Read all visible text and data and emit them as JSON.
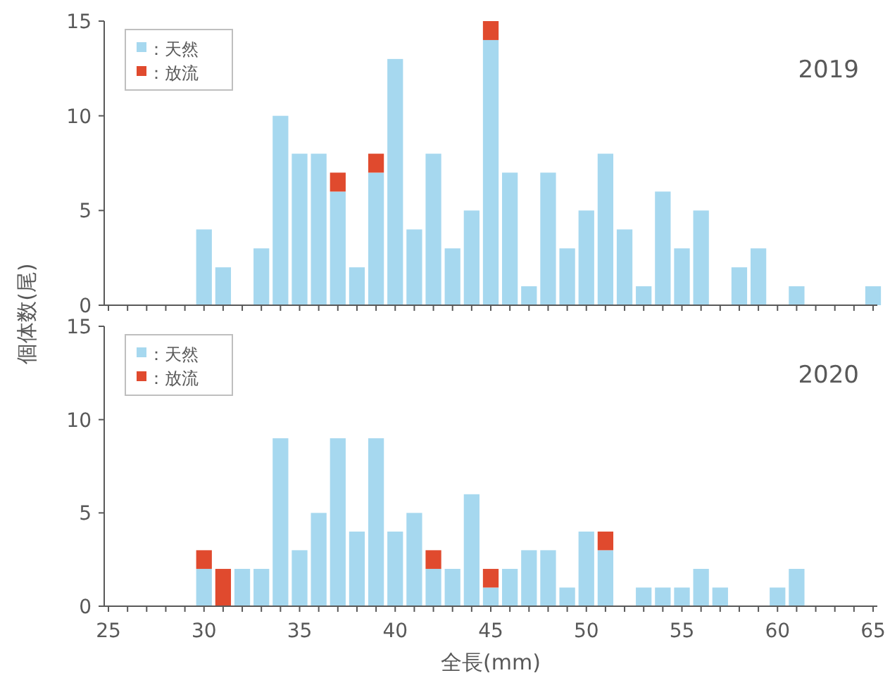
{
  "chart_data": [
    {
      "type": "bar",
      "stacked": true,
      "ylabel": "個体数(尾)",
      "annotations": [
        "2019"
      ],
      "legend": "top left",
      "tick_labels": "y",
      "ylim": [
        0,
        15
      ],
      "yticks": [
        0,
        5,
        10,
        15
      ],
      "categories": [
        "25",
        null,
        null,
        null,
        null,
        "30",
        null,
        null,
        null,
        null,
        "35",
        null,
        null,
        null,
        null,
        "40",
        null,
        null,
        null,
        null,
        "45",
        null,
        null,
        null,
        null,
        "50",
        null,
        null,
        null,
        null,
        "55",
        null,
        null,
        null,
        null,
        "60",
        null,
        null,
        null,
        null,
        "65"
      ],
      "series": [
        {
          "name": "：天然",
          "color": "#a6d8ef",
          "values": [
            0,
            0,
            0,
            0,
            0,
            4,
            2,
            0,
            3,
            10,
            8,
            8,
            6,
            2,
            7,
            13,
            4,
            8,
            3,
            5,
            14,
            7,
            1,
            7,
            3,
            5,
            8,
            4,
            1,
            6,
            3,
            5,
            0,
            2,
            3,
            0,
            1,
            0,
            0,
            0,
            1
          ]
        },
        {
          "name": "：放流",
          "color": "#e04a2e",
          "values": [
            0,
            0,
            0,
            0,
            0,
            0,
            0,
            0,
            0,
            0,
            0,
            0,
            1,
            0,
            1,
            0,
            0,
            0,
            0,
            0,
            1,
            0,
            0,
            0,
            0,
            0,
            0,
            0,
            0,
            0,
            0,
            0,
            0,
            0,
            0,
            0,
            0,
            0,
            0,
            0,
            0
          ]
        }
      ]
    },
    {
      "type": "bar",
      "stacked": true,
      "xlabel": "全長(mm)",
      "annotations": [
        "2020"
      ],
      "legend": "top left",
      "ylim": [
        0,
        15
      ],
      "yticks": [
        0,
        5,
        10,
        15
      ],
      "categories": [
        "25",
        null,
        null,
        null,
        null,
        "30",
        null,
        null,
        null,
        null,
        "35",
        null,
        null,
        null,
        null,
        "40",
        null,
        null,
        null,
        null,
        "45",
        null,
        null,
        null,
        null,
        "50",
        null,
        null,
        null,
        null,
        "55",
        null,
        null,
        null,
        null,
        "60",
        null,
        null,
        null,
        null,
        "65"
      ],
      "series": [
        {
          "name": "：天然",
          "color": "#a6d8ef",
          "values": [
            0,
            0,
            0,
            0,
            0,
            2,
            0,
            2,
            2,
            9,
            3,
            5,
            9,
            4,
            9,
            4,
            5,
            2,
            2,
            6,
            1,
            2,
            3,
            3,
            1,
            4,
            3,
            0,
            1,
            1,
            1,
            2,
            1,
            0,
            0,
            1,
            2,
            0,
            0,
            0,
            0
          ]
        },
        {
          "name": "：放流",
          "color": "#e04a2e",
          "values": [
            0,
            0,
            0,
            0,
            0,
            1,
            2,
            0,
            0,
            0,
            0,
            0,
            0,
            0,
            0,
            0,
            0,
            1,
            0,
            0,
            1,
            0,
            0,
            0,
            0,
            0,
            1,
            0,
            0,
            0,
            0,
            0,
            0,
            0,
            0,
            0,
            0,
            0,
            0,
            0,
            0
          ]
        }
      ]
    }
  ]
}
